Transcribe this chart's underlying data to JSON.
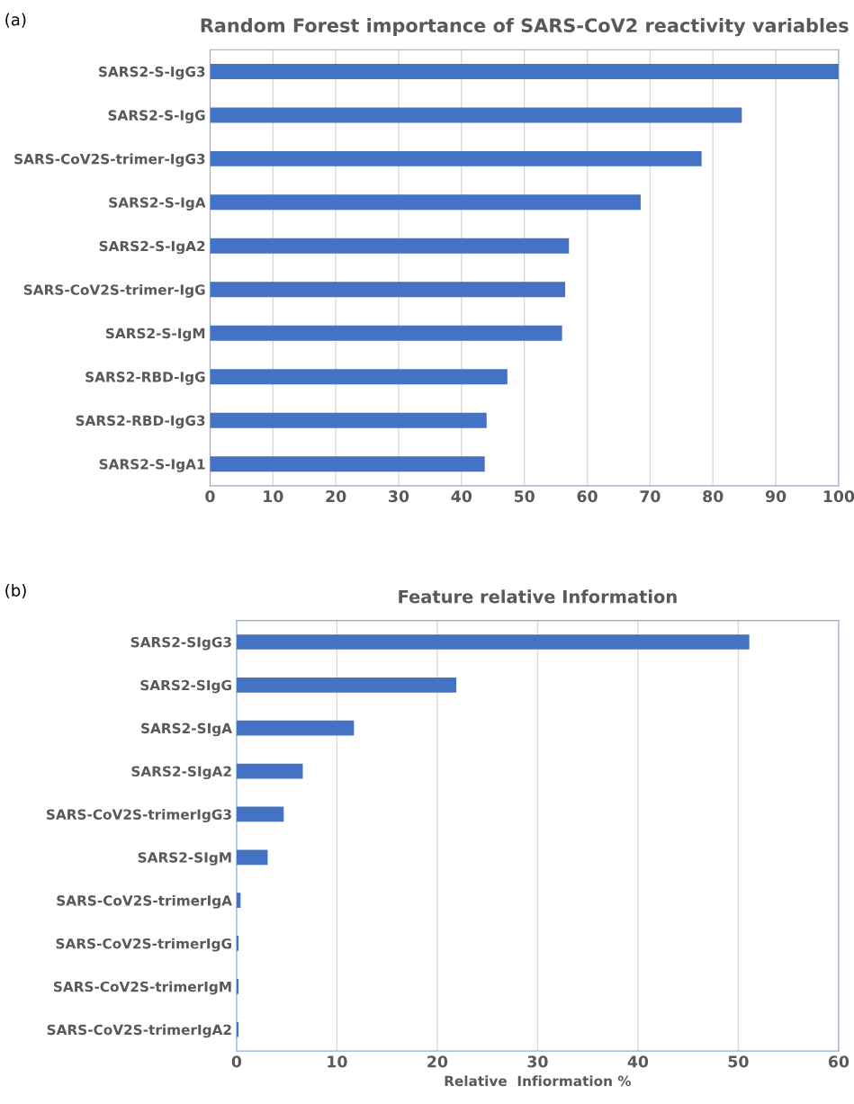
{
  "chart_data": [
    {
      "type": "bar",
      "orientation": "horizontal",
      "title": "Random Forest importance of SARS-CoV2 reactivity variables",
      "annotations": [
        "(a)"
      ],
      "categories": [
        "SARS2-S-IgG3",
        "SARS2-S-IgG",
        "SARS-CoV2S-trimer-IgG3",
        "SARS2-S-IgA",
        "SARS2-S-IgA2",
        "SARS-CoV2S-trimer-IgG",
        "SARS2-S-IgM",
        "SARS2-RBD-IgG",
        "SARS2-RBD-IgG3",
        "SARS2-S-IgA1"
      ],
      "values": [
        100,
        84.6,
        78.2,
        68.5,
        57.1,
        56.5,
        56.0,
        47.3,
        44.0,
        43.7
      ],
      "color": "#4472c4",
      "xlim": [
        0,
        100
      ],
      "xticks": [
        0,
        10,
        20,
        30,
        40,
        50,
        60,
        70,
        80,
        90,
        100
      ],
      "grid": "x"
    },
    {
      "type": "bar",
      "orientation": "horizontal",
      "title": "Feature relative Information",
      "xlabel": "Relative  Infiormation %",
      "annotations": [
        "(b)"
      ],
      "categories": [
        "SARS2-SIgG3",
        "SARS2-SIgG",
        "SARS2-SIgA",
        "SARS2-SIgA2",
        "SARS-CoV2S-trimerIgG3",
        "SARS2-SIgM",
        "SARS-CoV2S-trimerIgA",
        "SARS-CoV2S-trimerIgG",
        "SARS-CoV2S-trimerIgM",
        "SARS-CoV2S-trimerIgA2"
      ],
      "values": [
        51.1,
        21.9,
        11.7,
        6.6,
        4.7,
        3.1,
        0.4,
        0.2,
        0.2,
        0.2
      ],
      "color": "#4472c4",
      "xlim": [
        0,
        60
      ],
      "xticks": [
        0,
        10,
        20,
        30,
        40,
        50,
        60
      ],
      "grid": "x"
    }
  ]
}
